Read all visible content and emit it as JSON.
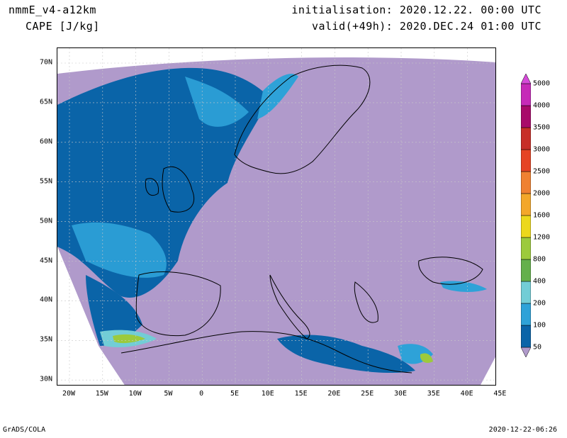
{
  "header": {
    "model": "nmmE_v4-a12km",
    "variable": "CAPE [J/kg]",
    "initialisation": "initialisation: 2020.12.22. 00:00 UTC",
    "valid": "valid(+49h): 2020.DEC.24 01:00 UTC"
  },
  "footer": {
    "left": "GrADS/COLA",
    "right": "2020-12-22-06:26"
  },
  "map": {
    "background_color": "#b09acb",
    "lat_labels": [
      "70N",
      "65N",
      "60N",
      "55N",
      "50N",
      "45N",
      "40N",
      "35N",
      "30N"
    ],
    "lon_labels": [
      "20W",
      "15W",
      "10W",
      "5W",
      "0",
      "5E",
      "10E",
      "15E",
      "20E",
      "25E",
      "30E",
      "35E",
      "40E",
      "45E"
    ]
  },
  "colorbar": {
    "labels": [
      "5000",
      "4000",
      "3500",
      "3000",
      "2500",
      "2000",
      "1600",
      "1200",
      "800",
      "400",
      "200",
      "100",
      "50"
    ],
    "colors": [
      "#b09acb",
      "#0a64a8",
      "#2ea2d8",
      "#72cdd6",
      "#64b04c",
      "#9cca3c",
      "#ecd81c",
      "#f3a72a",
      "#ef8131",
      "#e54424",
      "#c72f28",
      "#a80a6a",
      "#c62ab8",
      "#d54ad8"
    ]
  }
}
